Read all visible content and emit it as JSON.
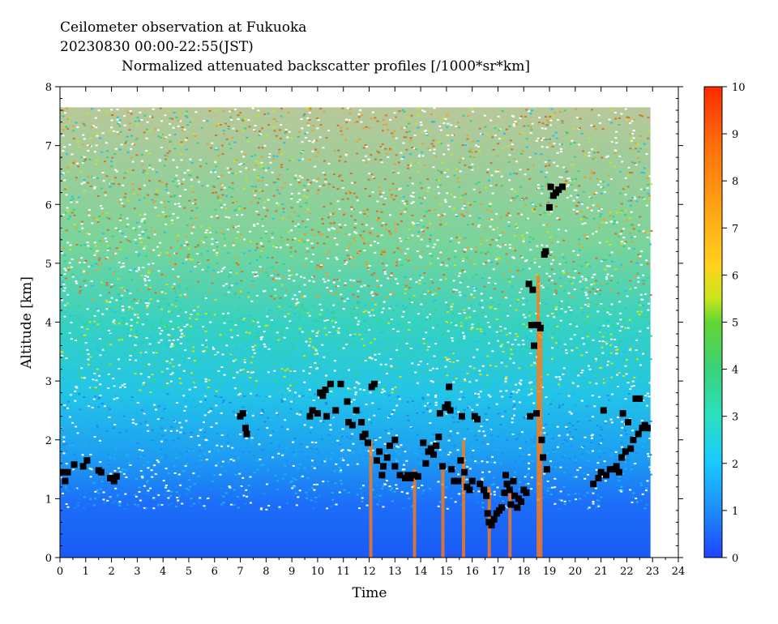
{
  "header": {
    "line1": "Ceilometer observation at Fukuoka",
    "line2": "20230830   00:00-22:55(JST)",
    "line3": "Normalized attenuated backscatter profiles [/1000*sr*km]"
  },
  "chart_data": {
    "type": "heatmap",
    "xlabel": "Time",
    "ylabel": "Altitude [km]",
    "xlim": [
      0,
      24
    ],
    "ylim": [
      0,
      8
    ],
    "x_ticks": [
      "0",
      "1",
      "2",
      "3",
      "4",
      "5",
      "6",
      "7",
      "8",
      "9",
      "10",
      "11",
      "12",
      "13",
      "14",
      "15",
      "16",
      "17",
      "18",
      "19",
      "20",
      "21",
      "22",
      "23",
      "24"
    ],
    "y_ticks": [
      "0",
      "1",
      "2",
      "3",
      "4",
      "5",
      "6",
      "7",
      "8"
    ],
    "colorbar": {
      "min": 0,
      "max": 10,
      "ticks": [
        "0",
        "1",
        "2",
        "3",
        "4",
        "5",
        "6",
        "7",
        "8",
        "9",
        "10"
      ],
      "colors": [
        "#1f4fff",
        "#1e8cff",
        "#19c8ff",
        "#22e0c8",
        "#3ad27a",
        "#5cd23c",
        "#b6e61e",
        "#ffd21e",
        "#ffa014",
        "#ff6e0a",
        "#ff2800"
      ]
    },
    "data_end_hour": 22.92,
    "cloud_base_heights": [
      {
        "t": 0.05,
        "h": 1.45
      },
      {
        "t": 0.2,
        "h": 1.3
      },
      {
        "t": 0.3,
        "h": 1.45
      },
      {
        "t": 0.55,
        "h": 1.58
      },
      {
        "t": 0.9,
        "h": 1.55
      },
      {
        "t": 1.05,
        "h": 1.65
      },
      {
        "t": 1.5,
        "h": 1.48
      },
      {
        "t": 1.6,
        "h": 1.45
      },
      {
        "t": 1.95,
        "h": 1.35
      },
      {
        "t": 2.1,
        "h": 1.3
      },
      {
        "t": 2.2,
        "h": 1.38
      },
      {
        "t": 7.0,
        "h": 2.4
      },
      {
        "t": 7.1,
        "h": 2.45
      },
      {
        "t": 7.2,
        "h": 2.2
      },
      {
        "t": 7.25,
        "h": 2.1
      },
      {
        "t": 9.7,
        "h": 2.4
      },
      {
        "t": 9.8,
        "h": 2.5
      },
      {
        "t": 10.0,
        "h": 2.45
      },
      {
        "t": 10.1,
        "h": 2.8
      },
      {
        "t": 10.2,
        "h": 2.75
      },
      {
        "t": 10.3,
        "h": 2.85
      },
      {
        "t": 10.35,
        "h": 2.4
      },
      {
        "t": 10.5,
        "h": 2.95
      },
      {
        "t": 10.7,
        "h": 2.5
      },
      {
        "t": 10.9,
        "h": 2.95
      },
      {
        "t": 11.15,
        "h": 2.65
      },
      {
        "t": 11.2,
        "h": 2.3
      },
      {
        "t": 11.35,
        "h": 2.25
      },
      {
        "t": 11.5,
        "h": 2.5
      },
      {
        "t": 11.7,
        "h": 2.3
      },
      {
        "t": 11.75,
        "h": 2.05
      },
      {
        "t": 11.85,
        "h": 2.1
      },
      {
        "t": 11.95,
        "h": 1.95
      },
      {
        "t": 12.1,
        "h": 2.9
      },
      {
        "t": 12.2,
        "h": 2.95
      },
      {
        "t": 12.3,
        "h": 1.65
      },
      {
        "t": 12.4,
        "h": 1.8
      },
      {
        "t": 12.5,
        "h": 1.4
      },
      {
        "t": 12.55,
        "h": 1.55
      },
      {
        "t": 12.7,
        "h": 1.7
      },
      {
        "t": 12.8,
        "h": 1.9
      },
      {
        "t": 13.0,
        "h": 2.0
      },
      {
        "t": 13.0,
        "h": 1.55
      },
      {
        "t": 13.2,
        "h": 1.4
      },
      {
        "t": 13.4,
        "h": 1.35
      },
      {
        "t": 13.5,
        "h": 1.4
      },
      {
        "t": 13.6,
        "h": 1.35
      },
      {
        "t": 13.75,
        "h": 1.4
      },
      {
        "t": 13.9,
        "h": 1.38
      },
      {
        "t": 14.1,
        "h": 1.95
      },
      {
        "t": 14.2,
        "h": 1.6
      },
      {
        "t": 14.3,
        "h": 1.8
      },
      {
        "t": 14.4,
        "h": 1.85
      },
      {
        "t": 14.5,
        "h": 1.75
      },
      {
        "t": 14.6,
        "h": 1.9
      },
      {
        "t": 14.7,
        "h": 2.05
      },
      {
        "t": 14.75,
        "h": 2.45
      },
      {
        "t": 14.85,
        "h": 1.55
      },
      {
        "t": 14.95,
        "h": 2.55
      },
      {
        "t": 15.05,
        "h": 2.6
      },
      {
        "t": 15.1,
        "h": 2.9
      },
      {
        "t": 15.15,
        "h": 2.5
      },
      {
        "t": 15.2,
        "h": 1.5
      },
      {
        "t": 15.3,
        "h": 1.3
      },
      {
        "t": 15.45,
        "h": 1.3
      },
      {
        "t": 15.55,
        "h": 1.65
      },
      {
        "t": 15.6,
        "h": 2.4
      },
      {
        "t": 15.7,
        "h": 1.45
      },
      {
        "t": 15.8,
        "h": 1.2
      },
      {
        "t": 15.9,
        "h": 1.15
      },
      {
        "t": 16.0,
        "h": 1.3
      },
      {
        "t": 16.1,
        "h": 2.4
      },
      {
        "t": 16.2,
        "h": 2.35
      },
      {
        "t": 16.3,
        "h": 1.25
      },
      {
        "t": 16.45,
        "h": 1.15
      },
      {
        "t": 16.55,
        "h": 1.05
      },
      {
        "t": 16.6,
        "h": 0.75
      },
      {
        "t": 16.65,
        "h": 0.6
      },
      {
        "t": 16.75,
        "h": 0.55
      },
      {
        "t": 16.85,
        "h": 0.65
      },
      {
        "t": 16.95,
        "h": 0.75
      },
      {
        "t": 17.05,
        "h": 0.8
      },
      {
        "t": 17.15,
        "h": 0.85
      },
      {
        "t": 17.25,
        "h": 1.1
      },
      {
        "t": 17.3,
        "h": 1.4
      },
      {
        "t": 17.35,
        "h": 1.25
      },
      {
        "t": 17.45,
        "h": 1.15
      },
      {
        "t": 17.5,
        "h": 0.9
      },
      {
        "t": 17.6,
        "h": 1.3
      },
      {
        "t": 17.65,
        "h": 1.05
      },
      {
        "t": 17.75,
        "h": 0.85
      },
      {
        "t": 17.8,
        "h": 1.0
      },
      {
        "t": 17.9,
        "h": 0.95
      },
      {
        "t": 18.0,
        "h": 1.15
      },
      {
        "t": 18.1,
        "h": 1.1
      },
      {
        "t": 18.2,
        "h": 4.65
      },
      {
        "t": 18.25,
        "h": 2.4
      },
      {
        "t": 18.3,
        "h": 3.95
      },
      {
        "t": 18.35,
        "h": 4.55
      },
      {
        "t": 18.4,
        "h": 3.6
      },
      {
        "t": 18.5,
        "h": 2.45
      },
      {
        "t": 18.55,
        "h": 3.95
      },
      {
        "t": 18.65,
        "h": 3.9
      },
      {
        "t": 18.7,
        "h": 2.0
      },
      {
        "t": 18.75,
        "h": 1.7
      },
      {
        "t": 18.8,
        "h": 5.15
      },
      {
        "t": 18.85,
        "h": 5.2
      },
      {
        "t": 18.9,
        "h": 1.5
      },
      {
        "t": 19.0,
        "h": 5.95
      },
      {
        "t": 19.05,
        "h": 6.3
      },
      {
        "t": 19.15,
        "h": 6.15
      },
      {
        "t": 19.25,
        "h": 6.2
      },
      {
        "t": 19.35,
        "h": 6.25
      },
      {
        "t": 19.5,
        "h": 6.3
      },
      {
        "t": 20.7,
        "h": 1.25
      },
      {
        "t": 20.9,
        "h": 1.35
      },
      {
        "t": 21.0,
        "h": 1.45
      },
      {
        "t": 21.1,
        "h": 2.5
      },
      {
        "t": 21.2,
        "h": 1.4
      },
      {
        "t": 21.35,
        "h": 1.5
      },
      {
        "t": 21.5,
        "h": 1.5
      },
      {
        "t": 21.6,
        "h": 1.55
      },
      {
        "t": 21.7,
        "h": 1.45
      },
      {
        "t": 21.8,
        "h": 1.7
      },
      {
        "t": 21.85,
        "h": 2.45
      },
      {
        "t": 21.95,
        "h": 1.8
      },
      {
        "t": 22.05,
        "h": 2.3
      },
      {
        "t": 22.15,
        "h": 1.85
      },
      {
        "t": 22.25,
        "h": 2.0
      },
      {
        "t": 22.35,
        "h": 2.7
      },
      {
        "t": 22.45,
        "h": 2.1
      },
      {
        "t": 22.5,
        "h": 2.7
      },
      {
        "t": 22.6,
        "h": 2.2
      },
      {
        "t": 22.7,
        "h": 2.25
      },
      {
        "t": 22.8,
        "h": 2.2
      }
    ]
  }
}
